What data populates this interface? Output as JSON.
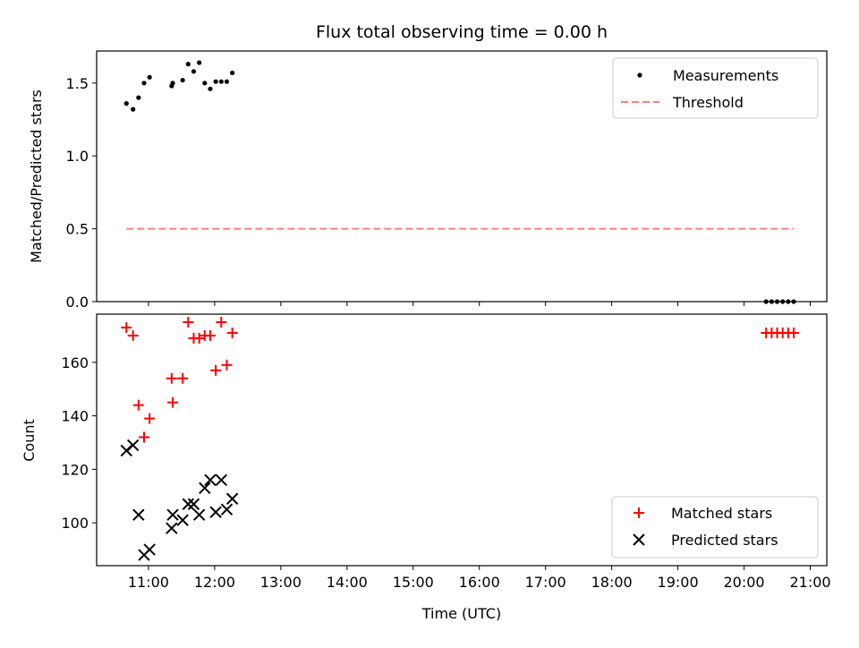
{
  "chart_data": [
    {
      "type": "scatter",
      "title": "Flux total observing time = 0.00 h",
      "xlabel": "",
      "ylabel": "Matched/Predicted stars",
      "ylim": [
        0,
        1.72
      ],
      "xlim": [
        "10:13",
        "21:15"
      ],
      "yticks": [
        0.0,
        0.5,
        1.0,
        1.5
      ],
      "yticklabels": [
        "0.0",
        "0.5",
        "1.0",
        "1.5"
      ],
      "legend_position": "top-right",
      "series": [
        {
          "name": "Measurements",
          "style": "dot",
          "color": "#000000",
          "points": [
            {
              "x": "10:40",
              "y": 1.36
            },
            {
              "x": "10:46",
              "y": 1.32
            },
            {
              "x": "10:51",
              "y": 1.4
            },
            {
              "x": "10:56",
              "y": 1.5
            },
            {
              "x": "11:01",
              "y": 1.54
            },
            {
              "x": "11:21",
              "y": 1.48
            },
            {
              "x": "11:22",
              "y": 1.5
            },
            {
              "x": "11:31",
              "y": 1.52
            },
            {
              "x": "11:36",
              "y": 1.63
            },
            {
              "x": "11:41",
              "y": 1.58
            },
            {
              "x": "11:46",
              "y": 1.64
            },
            {
              "x": "11:51",
              "y": 1.5
            },
            {
              "x": "11:56",
              "y": 1.46
            },
            {
              "x": "12:01",
              "y": 1.51
            },
            {
              "x": "12:06",
              "y": 1.51
            },
            {
              "x": "12:11",
              "y": 1.51
            },
            {
              "x": "12:16",
              "y": 1.57
            },
            {
              "x": "20:20",
              "y": 0.0
            },
            {
              "x": "20:25",
              "y": 0.0
            },
            {
              "x": "20:30",
              "y": 0.0
            },
            {
              "x": "20:35",
              "y": 0.0
            },
            {
              "x": "20:40",
              "y": 0.0
            },
            {
              "x": "20:45",
              "y": 0.0
            }
          ]
        },
        {
          "name": "Threshold",
          "style": "dashed-line",
          "color": "#ff7f7f",
          "points": [
            {
              "x": "10:40",
              "y": 0.5
            },
            {
              "x": "20:45",
              "y": 0.5
            }
          ]
        }
      ]
    },
    {
      "type": "scatter",
      "title": "",
      "xlabel": "Time (UTC)",
      "ylabel": "Count",
      "ylim": [
        84,
        178
      ],
      "xlim": [
        "10:13",
        "21:15"
      ],
      "yticks": [
        100,
        120,
        140,
        160
      ],
      "yticklabels": [
        "100",
        "120",
        "140",
        "160"
      ],
      "xticks": [
        "11:00",
        "12:00",
        "13:00",
        "14:00",
        "15:00",
        "16:00",
        "17:00",
        "18:00",
        "19:00",
        "20:00",
        "21:00"
      ],
      "legend_position": "bottom-right",
      "series": [
        {
          "name": "Matched stars",
          "style": "plus",
          "color": "#ff0000",
          "points": [
            {
              "x": "10:40",
              "y": 173
            },
            {
              "x": "10:46",
              "y": 170
            },
            {
              "x": "10:51",
              "y": 144
            },
            {
              "x": "10:56",
              "y": 132
            },
            {
              "x": "11:01",
              "y": 139
            },
            {
              "x": "11:21",
              "y": 154
            },
            {
              "x": "11:22",
              "y": 145
            },
            {
              "x": "11:31",
              "y": 154
            },
            {
              "x": "11:36",
              "y": 175
            },
            {
              "x": "11:41",
              "y": 169
            },
            {
              "x": "11:46",
              "y": 169
            },
            {
              "x": "11:51",
              "y": 170
            },
            {
              "x": "11:56",
              "y": 170
            },
            {
              "x": "12:01",
              "y": 157
            },
            {
              "x": "12:06",
              "y": 175
            },
            {
              "x": "12:11",
              "y": 159
            },
            {
              "x": "12:16",
              "y": 171
            },
            {
              "x": "20:20",
              "y": 171
            },
            {
              "x": "20:25",
              "y": 171
            },
            {
              "x": "20:30",
              "y": 171
            },
            {
              "x": "20:35",
              "y": 171
            },
            {
              "x": "20:40",
              "y": 171
            },
            {
              "x": "20:45",
              "y": 171
            }
          ]
        },
        {
          "name": "Predicted stars",
          "style": "x",
          "color": "#000000",
          "points": [
            {
              "x": "10:40",
              "y": 127
            },
            {
              "x": "10:46",
              "y": 129
            },
            {
              "x": "10:51",
              "y": 103
            },
            {
              "x": "10:56",
              "y": 88
            },
            {
              "x": "11:01",
              "y": 90
            },
            {
              "x": "11:21",
              "y": 98
            },
            {
              "x": "11:22",
              "y": 103
            },
            {
              "x": "11:31",
              "y": 101
            },
            {
              "x": "11:36",
              "y": 107
            },
            {
              "x": "11:41",
              "y": 107
            },
            {
              "x": "11:46",
              "y": 103
            },
            {
              "x": "11:51",
              "y": 113
            },
            {
              "x": "11:56",
              "y": 116
            },
            {
              "x": "12:01",
              "y": 104
            },
            {
              "x": "12:06",
              "y": 116
            },
            {
              "x": "12:11",
              "y": 105
            },
            {
              "x": "12:16",
              "y": 109
            }
          ]
        }
      ]
    }
  ]
}
